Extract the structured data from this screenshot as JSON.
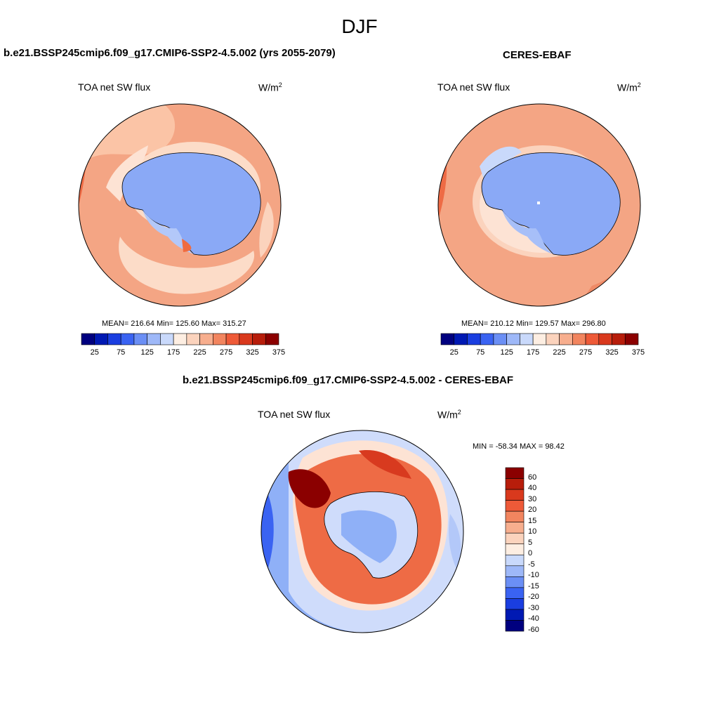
{
  "figure": {
    "season": "DJF"
  },
  "panels": [
    {
      "title": "b.e21.BSSP245cmip6.f09_g17.CMIP6-SSP2-4.5.002 (yrs 2055-2079)",
      "left_label": "TOA net SW flux",
      "unit_base": "W/m",
      "unit_exp": "2",
      "stats": "MEAN= 216.64  Min= 125.60  Max= 315.27"
    },
    {
      "title": "CERES-EBAF",
      "left_label": "TOA net SW flux",
      "unit_base": "W/m",
      "unit_exp": "2",
      "stats": "MEAN= 210.12  Min= 129.57  Max= 296.80"
    },
    {
      "title": "b.e21.BSSP245cmip6.f09_g17.CMIP6-SSP2-4.5.002 - CERES-EBAF",
      "left_label": "TOA net SW flux",
      "unit_base": "W/m",
      "unit_exp": "2",
      "stats": "MIN = -58.34 MAX =  98.42"
    }
  ],
  "colorbar_abs": {
    "colors": [
      "#00007f",
      "#0019b3",
      "#1a3ee0",
      "#3a63f2",
      "#6b8ff5",
      "#9eb8f8",
      "#c9d9fb",
      "#fdeee2",
      "#fbd3bd",
      "#f7ae8e",
      "#f2855f",
      "#ee5a38",
      "#d9391d",
      "#b71d0b",
      "#8b0000"
    ],
    "tick_labels": [
      "25",
      "75",
      "125",
      "175",
      "225",
      "275",
      "325",
      "375"
    ]
  },
  "colorbar_diff": {
    "colors": [
      "#00007f",
      "#0019b3",
      "#1a3ee0",
      "#3a63f2",
      "#6b8ff5",
      "#9eb8f8",
      "#c9d9fb",
      "#fdeee2",
      "#fbd3bd",
      "#f7ae8e",
      "#f2855f",
      "#ee5a38",
      "#d9391d",
      "#b71d0b",
      "#8b0000"
    ],
    "tick_labels": [
      "60",
      "40",
      "30",
      "20",
      "15",
      "10",
      "5",
      "0",
      "-5",
      "-10",
      "-15",
      "-20",
      "-30",
      "-40",
      "-60"
    ]
  },
  "map_colors": {
    "land_blue": "#8aa9f6",
    "land_blue_light": "#b3c8f9",
    "ocean_salmon": "#f4a584",
    "ocean_salmon_dark": "#ef8a66",
    "ocean_pale": "#fcdcc8",
    "diff_red": "#d83a1f",
    "diff_dark_red": "#8b0000",
    "diff_pale": "#fde3d4",
    "diff_blue": "#8fb0f7",
    "diff_light_blue": "#cfdcfb"
  }
}
